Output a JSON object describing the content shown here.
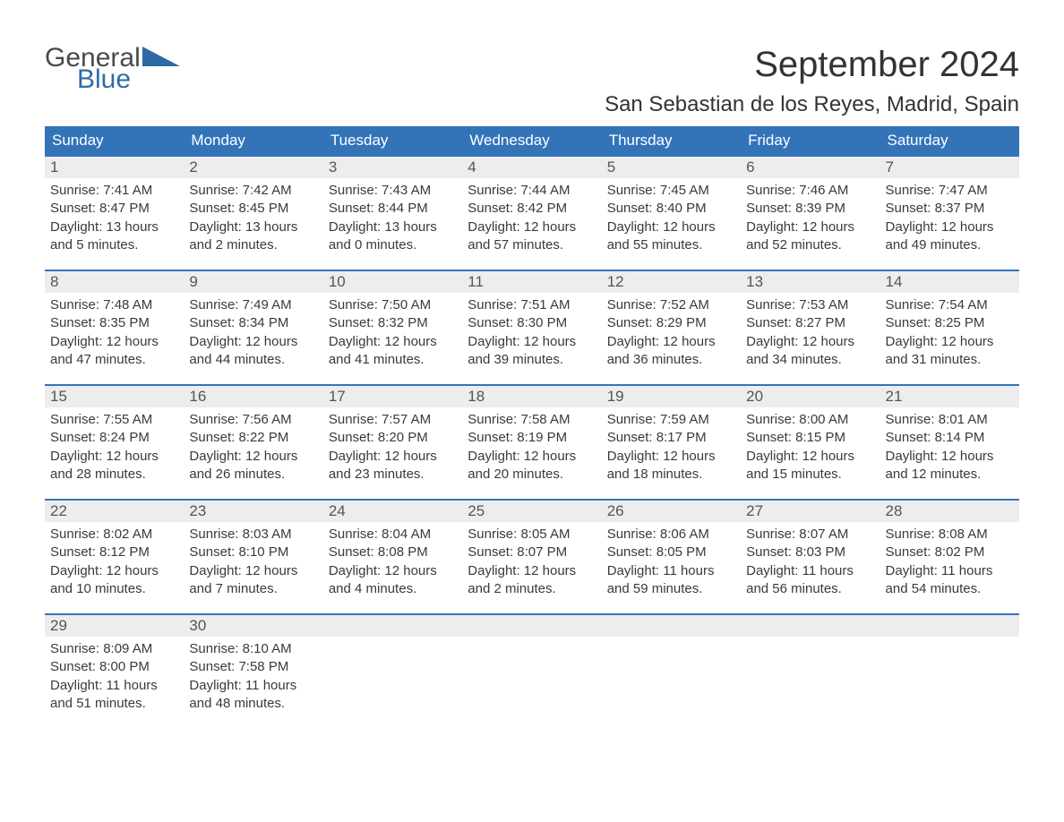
{
  "logo": {
    "word1": "General",
    "word2": "Blue",
    "word1_color": "#4a4a4a",
    "word2_color": "#2f6aa8",
    "shape_color": "#2f6aa8"
  },
  "title": "September 2024",
  "location": "San Sebastian de los Reyes, Madrid, Spain",
  "colors": {
    "header_bg": "#3374b9",
    "header_text": "#ffffff",
    "day_number_bg": "#ededed",
    "border": "#3374b9",
    "body_text": "#3a3a3a"
  },
  "weekdays": [
    "Sunday",
    "Monday",
    "Tuesday",
    "Wednesday",
    "Thursday",
    "Friday",
    "Saturday"
  ],
  "weeks": [
    [
      {
        "n": "1",
        "sr": "Sunrise: 7:41 AM",
        "ss": "Sunset: 8:47 PM",
        "dl1": "Daylight: 13 hours",
        "dl2": "and 5 minutes."
      },
      {
        "n": "2",
        "sr": "Sunrise: 7:42 AM",
        "ss": "Sunset: 8:45 PM",
        "dl1": "Daylight: 13 hours",
        "dl2": "and 2 minutes."
      },
      {
        "n": "3",
        "sr": "Sunrise: 7:43 AM",
        "ss": "Sunset: 8:44 PM",
        "dl1": "Daylight: 13 hours",
        "dl2": "and 0 minutes."
      },
      {
        "n": "4",
        "sr": "Sunrise: 7:44 AM",
        "ss": "Sunset: 8:42 PM",
        "dl1": "Daylight: 12 hours",
        "dl2": "and 57 minutes."
      },
      {
        "n": "5",
        "sr": "Sunrise: 7:45 AM",
        "ss": "Sunset: 8:40 PM",
        "dl1": "Daylight: 12 hours",
        "dl2": "and 55 minutes."
      },
      {
        "n": "6",
        "sr": "Sunrise: 7:46 AM",
        "ss": "Sunset: 8:39 PM",
        "dl1": "Daylight: 12 hours",
        "dl2": "and 52 minutes."
      },
      {
        "n": "7",
        "sr": "Sunrise: 7:47 AM",
        "ss": "Sunset: 8:37 PM",
        "dl1": "Daylight: 12 hours",
        "dl2": "and 49 minutes."
      }
    ],
    [
      {
        "n": "8",
        "sr": "Sunrise: 7:48 AM",
        "ss": "Sunset: 8:35 PM",
        "dl1": "Daylight: 12 hours",
        "dl2": "and 47 minutes."
      },
      {
        "n": "9",
        "sr": "Sunrise: 7:49 AM",
        "ss": "Sunset: 8:34 PM",
        "dl1": "Daylight: 12 hours",
        "dl2": "and 44 minutes."
      },
      {
        "n": "10",
        "sr": "Sunrise: 7:50 AM",
        "ss": "Sunset: 8:32 PM",
        "dl1": "Daylight: 12 hours",
        "dl2": "and 41 minutes."
      },
      {
        "n": "11",
        "sr": "Sunrise: 7:51 AM",
        "ss": "Sunset: 8:30 PM",
        "dl1": "Daylight: 12 hours",
        "dl2": "and 39 minutes."
      },
      {
        "n": "12",
        "sr": "Sunrise: 7:52 AM",
        "ss": "Sunset: 8:29 PM",
        "dl1": "Daylight: 12 hours",
        "dl2": "and 36 minutes."
      },
      {
        "n": "13",
        "sr": "Sunrise: 7:53 AM",
        "ss": "Sunset: 8:27 PM",
        "dl1": "Daylight: 12 hours",
        "dl2": "and 34 minutes."
      },
      {
        "n": "14",
        "sr": "Sunrise: 7:54 AM",
        "ss": "Sunset: 8:25 PM",
        "dl1": "Daylight: 12 hours",
        "dl2": "and 31 minutes."
      }
    ],
    [
      {
        "n": "15",
        "sr": "Sunrise: 7:55 AM",
        "ss": "Sunset: 8:24 PM",
        "dl1": "Daylight: 12 hours",
        "dl2": "and 28 minutes."
      },
      {
        "n": "16",
        "sr": "Sunrise: 7:56 AM",
        "ss": "Sunset: 8:22 PM",
        "dl1": "Daylight: 12 hours",
        "dl2": "and 26 minutes."
      },
      {
        "n": "17",
        "sr": "Sunrise: 7:57 AM",
        "ss": "Sunset: 8:20 PM",
        "dl1": "Daylight: 12 hours",
        "dl2": "and 23 minutes."
      },
      {
        "n": "18",
        "sr": "Sunrise: 7:58 AM",
        "ss": "Sunset: 8:19 PM",
        "dl1": "Daylight: 12 hours",
        "dl2": "and 20 minutes."
      },
      {
        "n": "19",
        "sr": "Sunrise: 7:59 AM",
        "ss": "Sunset: 8:17 PM",
        "dl1": "Daylight: 12 hours",
        "dl2": "and 18 minutes."
      },
      {
        "n": "20",
        "sr": "Sunrise: 8:00 AM",
        "ss": "Sunset: 8:15 PM",
        "dl1": "Daylight: 12 hours",
        "dl2": "and 15 minutes."
      },
      {
        "n": "21",
        "sr": "Sunrise: 8:01 AM",
        "ss": "Sunset: 8:14 PM",
        "dl1": "Daylight: 12 hours",
        "dl2": "and 12 minutes."
      }
    ],
    [
      {
        "n": "22",
        "sr": "Sunrise: 8:02 AM",
        "ss": "Sunset: 8:12 PM",
        "dl1": "Daylight: 12 hours",
        "dl2": "and 10 minutes."
      },
      {
        "n": "23",
        "sr": "Sunrise: 8:03 AM",
        "ss": "Sunset: 8:10 PM",
        "dl1": "Daylight: 12 hours",
        "dl2": "and 7 minutes."
      },
      {
        "n": "24",
        "sr": "Sunrise: 8:04 AM",
        "ss": "Sunset: 8:08 PM",
        "dl1": "Daylight: 12 hours",
        "dl2": "and 4 minutes."
      },
      {
        "n": "25",
        "sr": "Sunrise: 8:05 AM",
        "ss": "Sunset: 8:07 PM",
        "dl1": "Daylight: 12 hours",
        "dl2": "and 2 minutes."
      },
      {
        "n": "26",
        "sr": "Sunrise: 8:06 AM",
        "ss": "Sunset: 8:05 PM",
        "dl1": "Daylight: 11 hours",
        "dl2": "and 59 minutes."
      },
      {
        "n": "27",
        "sr": "Sunrise: 8:07 AM",
        "ss": "Sunset: 8:03 PM",
        "dl1": "Daylight: 11 hours",
        "dl2": "and 56 minutes."
      },
      {
        "n": "28",
        "sr": "Sunrise: 8:08 AM",
        "ss": "Sunset: 8:02 PM",
        "dl1": "Daylight: 11 hours",
        "dl2": "and 54 minutes."
      }
    ],
    [
      {
        "n": "29",
        "sr": "Sunrise: 8:09 AM",
        "ss": "Sunset: 8:00 PM",
        "dl1": "Daylight: 11 hours",
        "dl2": "and 51 minutes."
      },
      {
        "n": "30",
        "sr": "Sunrise: 8:10 AM",
        "ss": "Sunset: 7:58 PM",
        "dl1": "Daylight: 11 hours",
        "dl2": "and 48 minutes."
      },
      null,
      null,
      null,
      null,
      null
    ]
  ]
}
